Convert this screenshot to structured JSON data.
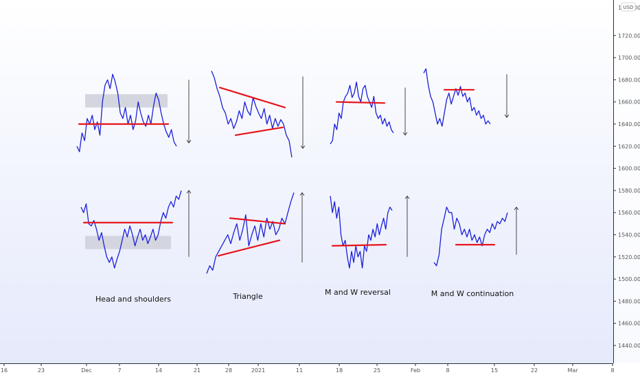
{
  "chart_data": {
    "type": "line",
    "currency": "USD",
    "y_axis": {
      "ticks": [
        1440,
        1460,
        1480,
        1500,
        1520,
        1540,
        1560,
        1580,
        1600,
        1620,
        1640,
        1660,
        1680,
        1700,
        1720
      ],
      "tick_labels": [
        "1440.000",
        "1460.000",
        "1480.000",
        "1500.000",
        "1520.000",
        "1540.000",
        "1560.000",
        "1580.000",
        "1600.000",
        "1620.000",
        "1640.000",
        "1660.000",
        "1680.000",
        "1700.000",
        "1720.000"
      ],
      "top_label": "1740.000",
      "ylim": [
        1428,
        1745
      ]
    },
    "x_axis": {
      "tick_labels": [
        "16",
        "23",
        "Dec",
        "7",
        "14",
        "21",
        "28",
        "2021",
        "11",
        "18",
        "25",
        "Feb",
        "8",
        "15",
        "22",
        "Mar",
        "8"
      ]
    },
    "grid": false,
    "patterns": [
      {
        "label": "Head and shoulders",
        "bearish": {
          "price": [
            1620,
            1615,
            1632,
            1625,
            1645,
            1640,
            1648,
            1635,
            1642,
            1630,
            1660,
            1675,
            1680,
            1672,
            1685,
            1678,
            1668,
            1650,
            1645,
            1655,
            1640,
            1648,
            1635,
            1643,
            1660,
            1650,
            1642,
            1638,
            1648,
            1640,
            1656,
            1668,
            1662,
            1650,
            1640,
            1633,
            1628,
            1635,
            1624,
            1620
          ],
          "neckline": [
            1640,
            1640
          ],
          "zone": [
            1655,
            1667
          ],
          "arrow": "down"
        },
        "bullish": {
          "price": [
            1565,
            1560,
            1568,
            1550,
            1548,
            1553,
            1545,
            1535,
            1542,
            1530,
            1520,
            1515,
            1520,
            1510,
            1518,
            1525,
            1535,
            1545,
            1538,
            1548,
            1540,
            1530,
            1538,
            1545,
            1535,
            1540,
            1532,
            1538,
            1545,
            1535,
            1540,
            1552,
            1560,
            1555,
            1565,
            1570,
            1565,
            1575,
            1572,
            1580
          ],
          "neckline": [
            1551,
            1551
          ],
          "zone": [
            1527,
            1539
          ],
          "arrow": "up"
        }
      },
      {
        "label": "Triangle",
        "bearish": {
          "price": [
            1688,
            1682,
            1672,
            1665,
            1655,
            1650,
            1640,
            1645,
            1636,
            1642,
            1652,
            1645,
            1660,
            1652,
            1648,
            1664,
            1656,
            1650,
            1645,
            1654,
            1640,
            1648,
            1636,
            1645,
            1638,
            1644,
            1640,
            1630,
            1625,
            1610
          ],
          "upper_line": [
            1673,
            1655
          ],
          "lower_line": [
            1630,
            1637
          ],
          "arrow": "down"
        },
        "bullish": {
          "price": [
            1505,
            1512,
            1508,
            1520,
            1525,
            1530,
            1535,
            1540,
            1532,
            1542,
            1550,
            1535,
            1545,
            1558,
            1530,
            1540,
            1548,
            1535,
            1550,
            1538,
            1555,
            1545,
            1552,
            1540,
            1545,
            1555,
            1550,
            1560,
            1570,
            1578
          ],
          "upper_line": [
            1555,
            1550
          ],
          "lower_line": [
            1521,
            1535
          ],
          "arrow": "up"
        }
      },
      {
        "label": "M and W reversal",
        "bearish": {
          "price": [
            1622,
            1625,
            1640,
            1635,
            1650,
            1645,
            1660,
            1665,
            1668,
            1675,
            1664,
            1668,
            1678,
            1665,
            1660,
            1672,
            1675,
            1665,
            1660,
            1655,
            1665,
            1650,
            1645,
            1648,
            1640,
            1645,
            1638,
            1642,
            1635,
            1632
          ],
          "neckline": [
            1660,
            1659
          ],
          "arrow": "down"
        },
        "bullish": {
          "price": [
            1575,
            1560,
            1570,
            1555,
            1565,
            1540,
            1530,
            1535,
            1520,
            1510,
            1525,
            1515,
            1530,
            1520,
            1525,
            1510,
            1530,
            1525,
            1540,
            1535,
            1545,
            1538,
            1550,
            1540,
            1548,
            1555,
            1545,
            1560,
            1565,
            1562
          ],
          "neckline": [
            1530,
            1531
          ],
          "arrow": "up"
        }
      },
      {
        "label": "M and W continuation",
        "bearish": {
          "price": [
            1686,
            1690,
            1675,
            1665,
            1660,
            1650,
            1640,
            1645,
            1638,
            1650,
            1662,
            1668,
            1658,
            1665,
            1672,
            1666,
            1674,
            1665,
            1668,
            1660,
            1664,
            1652,
            1655,
            1648,
            1652,
            1645,
            1648,
            1640,
            1643,
            1640
          ],
          "neckline": [
            1671,
            1671
          ],
          "arrow": "down"
        },
        "bullish": {
          "price": [
            1515,
            1512,
            1522,
            1545,
            1555,
            1565,
            1560,
            1560,
            1545,
            1555,
            1550,
            1540,
            1545,
            1538,
            1545,
            1535,
            1540,
            1533,
            1538,
            1530,
            1540,
            1545,
            1542,
            1550,
            1545,
            1552,
            1550,
            1555,
            1552,
            1560
          ],
          "neckline": [
            1531,
            1531
          ],
          "arrow": "up"
        }
      }
    ]
  }
}
